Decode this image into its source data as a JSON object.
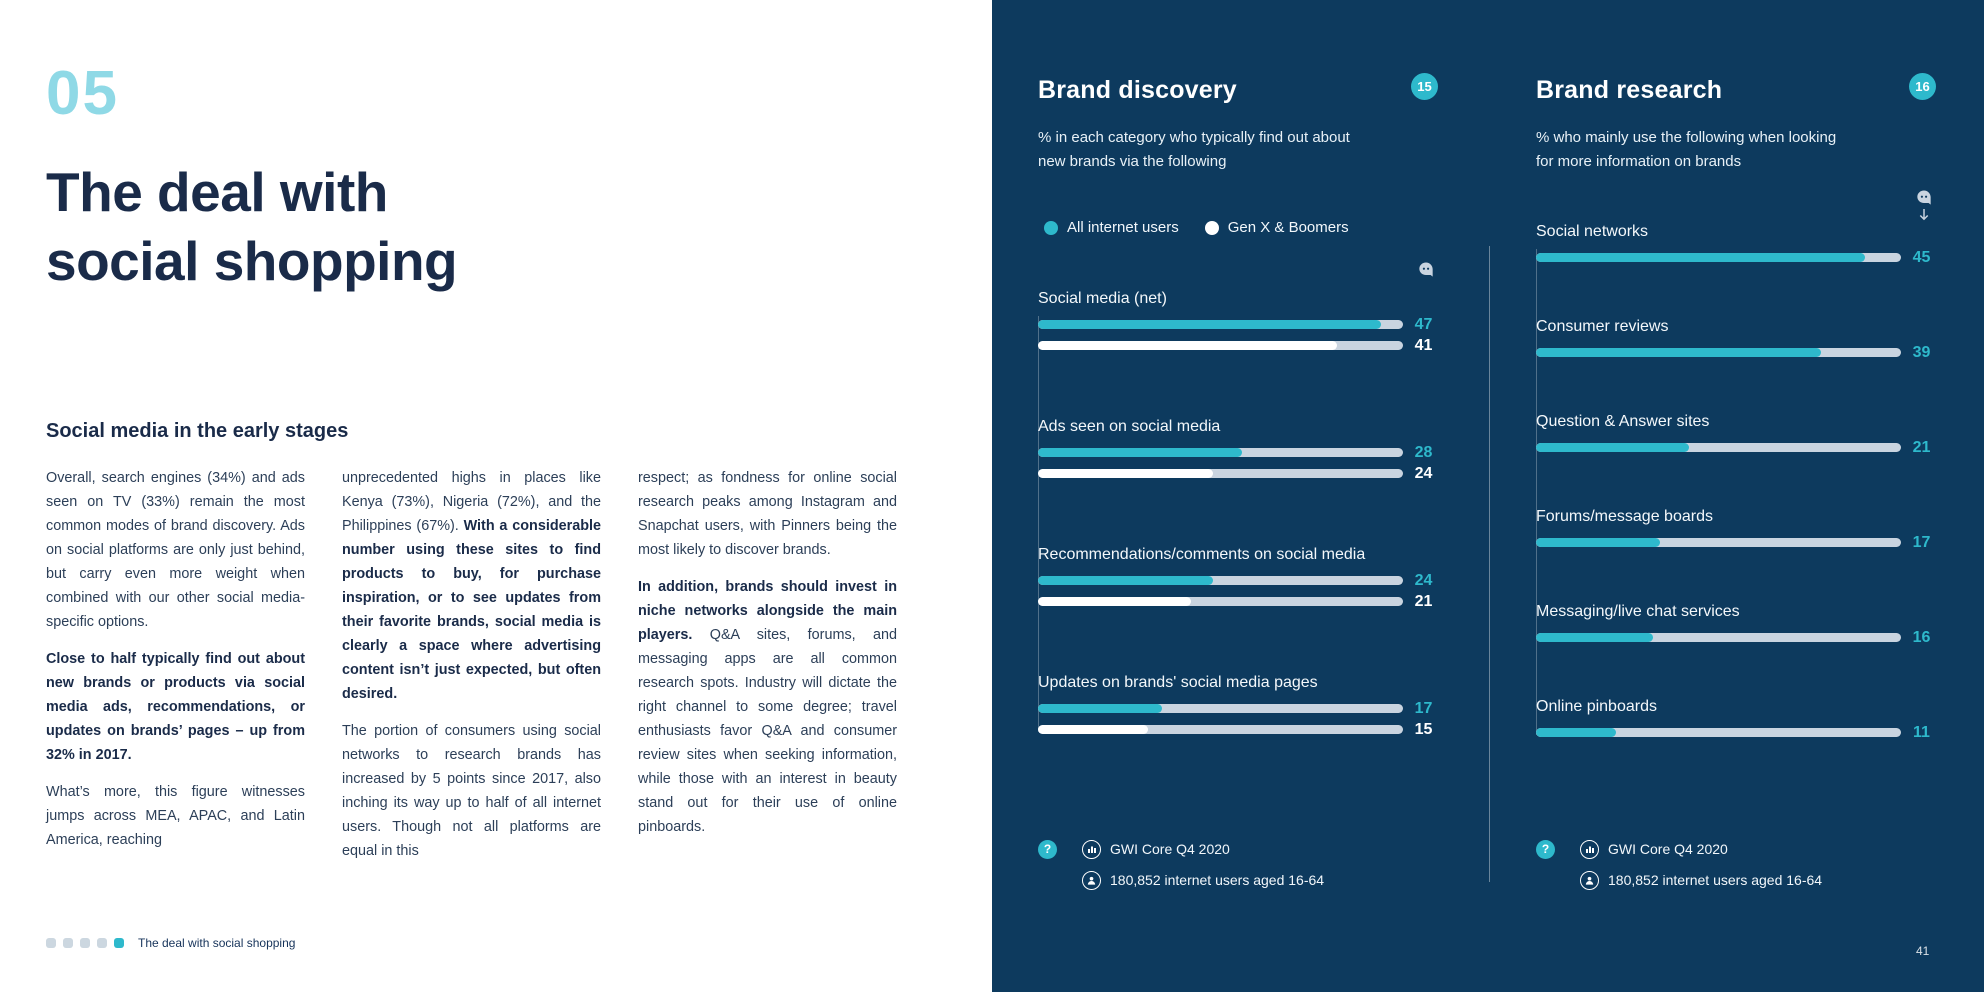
{
  "page": {
    "chapter_number": "05",
    "title_line1": "The deal with",
    "title_line2": "social shopping",
    "section_heading": "Social media in the early stages"
  },
  "article": {
    "columns": [
      [
        {
          "runs": [
            {
              "t": "Overall, search engines (34%) and ads seen on TV (33%) remain the most common modes of brand discovery. Ads on social platforms are only just behind, but carry even more weight when combined with our other social media-specific options.",
              "b": false
            }
          ]
        },
        {
          "runs": [
            {
              "t": "Close to half typically find out about new brands or products via social media ads, recommendations, or updates on brands’ pages – up from 32% in 2017.",
              "b": true
            }
          ]
        },
        {
          "runs": [
            {
              "t": "What’s more, this figure witnesses jumps across MEA, APAC, and Latin America, reaching",
              "b": false
            }
          ]
        }
      ],
      [
        {
          "runs": [
            {
              "t": "unprecedented highs in places like Kenya (73%), Nigeria (72%), and the Philippines (67%). ",
              "b": false
            },
            {
              "t": "With a considerable number using these sites to find products to buy, for purchase inspiration, or to see updates from their favorite brands, social media is clearly a space where advertising content isn’t just expected, but often desired.",
              "b": true
            }
          ]
        },
        {
          "runs": [
            {
              "t": "The portion of consumers using social networks to research brands has increased by 5 points since 2017, also inching its way up to half of all internet users. Though not all platforms are equal in this",
              "b": false
            }
          ]
        }
      ],
      [
        {
          "runs": [
            {
              "t": "respect; as fondness for online social research peaks among Instagram and Snapchat users, with Pinners being the most likely to discover brands.",
              "b": false
            }
          ]
        },
        {
          "runs": [
            {
              "t": "In addition, brands should invest in niche networks alongside the main players. ",
              "b": true
            },
            {
              "t": "Q&A sites, forums, and messaging apps are all common research spots. Industry will dictate the right channel to some degree; travel enthusiasts favor Q&A and consumer review sites when seeking information, while those with an interest in beauty stand out for their use of online pinboards.",
              "b": false
            }
          ]
        }
      ]
    ]
  },
  "chart_data": [
    {
      "type": "bar",
      "orientation": "horizontal",
      "title": "Brand discovery",
      "badge": "15",
      "subtitle": "% in each category who typically find out about new brands via the following",
      "categories": [
        "Social media (net)",
        "Ads seen on social media",
        "Recommendations/comments on social media",
        "Updates on brands' social media pages"
      ],
      "series": [
        {
          "name": "All internet users",
          "color": "#2eb9cc",
          "values": [
            47,
            28,
            24,
            17
          ]
        },
        {
          "name": "Gen X & Boomers",
          "color": "#ffffff",
          "values": [
            41,
            24,
            21,
            15
          ]
        }
      ],
      "xlim": [
        0,
        50
      ],
      "legend_position": "top",
      "grid": false,
      "source": "GWI Core Q4 2020",
      "base": "180,852 internet users aged 16-64"
    },
    {
      "type": "bar",
      "orientation": "horizontal",
      "title": "Brand research",
      "badge": "16",
      "subtitle": "% who mainly use the following when looking for more information on brands",
      "categories": [
        "Social networks",
        "Consumer reviews",
        "Question & Answer sites",
        "Forums/message boards",
        "Messaging/live chat services",
        "Online pinboards"
      ],
      "series": [
        {
          "name": "All internet users",
          "color": "#2eb9cc",
          "values": [
            45,
            39,
            21,
            17,
            16,
            11
          ]
        }
      ],
      "xlim": [
        0,
        50
      ],
      "legend_position": "none",
      "grid": false,
      "source": "GWI Core Q4 2020",
      "base": "180,852 internet users aged 16-64"
    }
  ],
  "colors": {
    "panel_navy": "#0d3a5e",
    "accent_cyan": "#2eb9cc",
    "chapter_light_cyan": "#8fd9e6",
    "bar_track": "#c9d4e0",
    "title_navy": "#1a2b49"
  },
  "footer": {
    "label": "The deal with social shopping",
    "page_number": "41",
    "dot_count": 5,
    "active_dot": 5
  }
}
